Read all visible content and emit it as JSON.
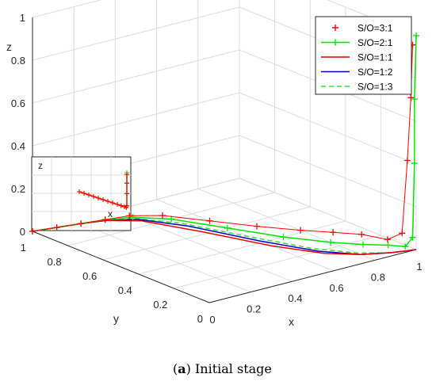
{
  "chart_data": {
    "type": "line",
    "projection": "3d",
    "xlabel": "x",
    "ylabel": "y",
    "zlabel": "z",
    "xlim": [
      0,
      1
    ],
    "ylim": [
      0,
      1
    ],
    "zlim": [
      0,
      1
    ],
    "x_ticks": [
      "0",
      "0.2",
      "0.4",
      "0.6",
      "0.8",
      "1"
    ],
    "y_ticks": [
      "0",
      "0.2",
      "0.4",
      "0.6",
      "0.8",
      "1"
    ],
    "z_ticks": [
      "0",
      "0.2",
      "0.4",
      "0.6",
      "0.8",
      "1"
    ],
    "grid": true,
    "legend_position": "top-right",
    "caption_label": "a",
    "caption_text": "Initial stage",
    "inset": {
      "zlabel": "z",
      "xlabel": "x"
    },
    "series": [
      {
        "name": "S/O=3:1",
        "color": "#ff0000",
        "style": "plus-markers",
        "x": [
          0.0,
          0.1,
          0.2,
          0.3,
          0.4,
          0.5,
          0.6,
          0.7,
          0.8,
          0.88,
          0.95,
          0.99,
          1.0,
          1.0,
          1.0,
          1.0
        ],
        "y": [
          1.0,
          0.98,
          0.96,
          0.94,
          0.92,
          0.85,
          0.7,
          0.55,
          0.42,
          0.33,
          0.25,
          0.15,
          0.08,
          0.05,
          0.03,
          0.02
        ],
        "z": [
          0.0,
          0.0,
          0.0,
          0.0,
          0.0,
          0.0,
          0.0,
          0.0,
          0.0,
          0.0,
          0.0,
          0.0,
          0.05,
          0.4,
          0.7,
          0.95
        ]
      },
      {
        "name": "S/O=2:1",
        "color": "#00e600",
        "style": "line-plus-markers",
        "x": [
          0.0,
          0.1,
          0.2,
          0.3,
          0.4,
          0.5,
          0.6,
          0.7,
          0.8,
          0.88,
          0.95,
          0.99,
          1.0,
          1.0,
          1.0,
          1.0
        ],
        "y": [
          1.0,
          0.98,
          0.96,
          0.94,
          0.9,
          0.8,
          0.6,
          0.4,
          0.25,
          0.16,
          0.1,
          0.05,
          0.02,
          0.01,
          0.01,
          0.0
        ],
        "z": [
          0.0,
          0.0,
          0.0,
          0.0,
          0.0,
          0.0,
          0.0,
          0.0,
          0.0,
          0.0,
          0.0,
          0.0,
          0.05,
          0.4,
          0.7,
          1.0
        ]
      },
      {
        "name": "S/O=1:1",
        "color": "#e60000",
        "style": "solid",
        "x": [
          0.0,
          0.1,
          0.2,
          0.3,
          0.4,
          0.5,
          0.6,
          0.7,
          0.8,
          0.9,
          0.96,
          1.0
        ],
        "y": [
          1.0,
          0.98,
          0.96,
          0.93,
          0.85,
          0.62,
          0.35,
          0.17,
          0.08,
          0.03,
          0.01,
          0.0
        ],
        "z": [
          0,
          0,
          0,
          0,
          0,
          0,
          0,
          0,
          0,
          0,
          0,
          0
        ]
      },
      {
        "name": "S/O=1:2",
        "color": "#0000cc",
        "style": "solid",
        "x": [
          0.0,
          0.1,
          0.2,
          0.3,
          0.4,
          0.5,
          0.6,
          0.7,
          0.8,
          0.9,
          0.96,
          1.0
        ],
        "y": [
          1.0,
          0.98,
          0.96,
          0.93,
          0.87,
          0.7,
          0.42,
          0.2,
          0.08,
          0.03,
          0.01,
          0.0
        ],
        "z": [
          0,
          0,
          0,
          0,
          0,
          0,
          0,
          0,
          0,
          0,
          0,
          0
        ]
      },
      {
        "name": "S/O=1:3",
        "color": "#33dd33",
        "style": "dashed",
        "x": [
          0.0,
          0.1,
          0.2,
          0.3,
          0.4,
          0.5,
          0.6,
          0.7,
          0.8,
          0.9,
          0.96,
          1.0
        ],
        "y": [
          1.0,
          0.98,
          0.96,
          0.93,
          0.88,
          0.74,
          0.48,
          0.24,
          0.1,
          0.03,
          0.01,
          0.0
        ],
        "z": [
          0,
          0,
          0,
          0,
          0,
          0,
          0,
          0,
          0,
          0,
          0,
          0
        ]
      }
    ]
  }
}
